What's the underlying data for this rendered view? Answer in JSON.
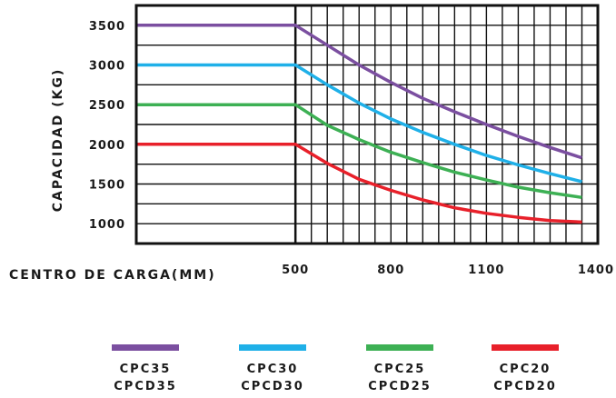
{
  "chart_data": {
    "type": "line",
    "xlabel": "CENTRO DE CARGA(MM)",
    "ylabel": "CAPACIDAD (KG)",
    "xlim": [
      0,
      1450
    ],
    "ylim": [
      750,
      3750
    ],
    "x_ticks": [
      {
        "value": 500,
        "label": "500"
      },
      {
        "value": 800,
        "label": "800"
      },
      {
        "value": 1100,
        "label": "1100"
      },
      {
        "value": 1400,
        "label": "1400"
      }
    ],
    "y_ticks": [
      {
        "value": 3500,
        "label": "3500"
      },
      {
        "value": 3000,
        "label": "3000"
      },
      {
        "value": 2500,
        "label": "2500"
      },
      {
        "value": 2000,
        "label": "2000"
      },
      {
        "value": 1500,
        "label": "1500"
      },
      {
        "value": 1000,
        "label": "1000"
      }
    ],
    "grid": true,
    "legend_position": "bottom",
    "series": [
      {
        "name": "CPC35 CPCD35",
        "legend_lines": [
          "CPC35",
          "CPCD35"
        ],
        "color": "#7b4fa0",
        "x": [
          0,
          500,
          600,
          700,
          800,
          900,
          1000,
          1100,
          1200,
          1300,
          1400
        ],
        "y": [
          3500,
          3500,
          3250,
          3000,
          2780,
          2580,
          2410,
          2250,
          2100,
          1960,
          1830
        ]
      },
      {
        "name": "CPC30 CPCD30",
        "legend_lines": [
          "CPC30",
          "CPCD30"
        ],
        "color": "#1fb0e8",
        "x": [
          0,
          500,
          600,
          700,
          800,
          900,
          1000,
          1100,
          1200,
          1300,
          1400
        ],
        "y": [
          3000,
          3000,
          2750,
          2520,
          2320,
          2150,
          2000,
          1860,
          1740,
          1630,
          1530
        ]
      },
      {
        "name": "CPC25 CPCD25",
        "legend_lines": [
          "CPC25",
          "CPCD25"
        ],
        "color": "#3db054",
        "x": [
          0,
          500,
          600,
          700,
          800,
          900,
          1000,
          1100,
          1200,
          1300,
          1400
        ],
        "y": [
          2500,
          2500,
          2240,
          2060,
          1900,
          1770,
          1650,
          1550,
          1460,
          1390,
          1330
        ]
      },
      {
        "name": "CPC20 CPCD20",
        "legend_lines": [
          "CPC20",
          "CPCD20"
        ],
        "color": "#e8202a",
        "x": [
          0,
          500,
          600,
          700,
          800,
          900,
          1000,
          1100,
          1200,
          1300,
          1400
        ],
        "y": [
          2000,
          2000,
          1760,
          1560,
          1420,
          1300,
          1200,
          1130,
          1080,
          1040,
          1020
        ]
      }
    ]
  }
}
